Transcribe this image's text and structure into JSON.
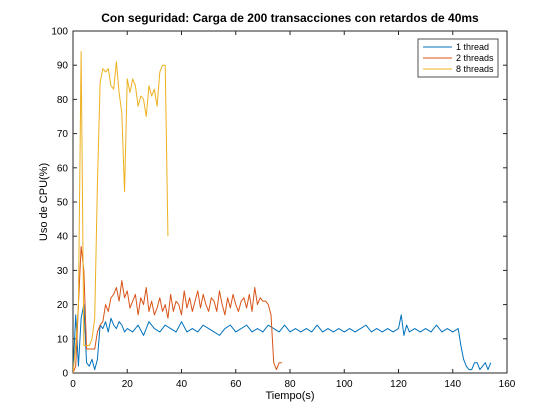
{
  "chart_data": {
    "type": "line",
    "title": "Con seguridad: Carga de 200 transacciones con retardos de 40ms",
    "xlabel": "Tiempo(s)",
    "ylabel": "Uso de CPU(%)",
    "xlim": [
      0,
      160
    ],
    "ylim": [
      0,
      100
    ],
    "xticks": [
      0,
      20,
      40,
      60,
      80,
      100,
      120,
      140,
      160
    ],
    "yticks": [
      0,
      10,
      20,
      30,
      40,
      50,
      60,
      70,
      80,
      90,
      100
    ],
    "grid": false,
    "legend_position": "top-right",
    "series": [
      {
        "name": "1 thread",
        "color": "#0072BD",
        "x": [
          0,
          1,
          2,
          3,
          4,
          5,
          6,
          7,
          8,
          9,
          10,
          11,
          12,
          13,
          14,
          15,
          16,
          17,
          18,
          19,
          20,
          22,
          24,
          26,
          28,
          30,
          32,
          34,
          36,
          38,
          40,
          42,
          44,
          46,
          48,
          50,
          52,
          54,
          56,
          58,
          60,
          62,
          64,
          66,
          68,
          70,
          72,
          74,
          76,
          78,
          80,
          82,
          84,
          86,
          88,
          90,
          92,
          94,
          96,
          98,
          100,
          102,
          104,
          106,
          108,
          110,
          112,
          114,
          116,
          118,
          120,
          121,
          122,
          123,
          124,
          126,
          128,
          130,
          132,
          134,
          136,
          138,
          140,
          142,
          143,
          144,
          145,
          146,
          147,
          148,
          149,
          150,
          151,
          152,
          153,
          154
        ],
        "y": [
          0,
          17,
          2,
          16,
          20,
          3,
          2,
          4,
          1,
          4,
          14,
          13,
          15,
          12,
          16,
          14,
          13,
          15,
          14,
          12,
          13,
          12,
          14,
          11,
          15,
          13,
          12,
          14,
          13,
          12,
          15,
          12,
          13,
          12,
          14,
          13,
          12,
          11,
          13,
          14,
          12,
          13,
          14,
          12,
          13,
          12,
          14,
          13,
          12,
          14,
          12,
          13,
          12,
          13,
          12,
          14,
          12,
          13,
          12,
          13,
          12,
          13,
          12,
          13,
          14,
          12,
          13,
          12,
          13,
          12,
          13,
          17,
          11,
          14,
          12,
          13,
          12,
          13,
          12,
          14,
          12,
          13,
          12,
          13,
          8,
          4,
          2,
          1,
          1,
          3,
          3,
          1,
          2,
          3,
          1,
          3
        ]
      },
      {
        "name": "2 threads",
        "color": "#D95319",
        "x": [
          0,
          1,
          2,
          3,
          4,
          5,
          6,
          7,
          8,
          9,
          10,
          11,
          12,
          13,
          14,
          15,
          16,
          17,
          18,
          19,
          20,
          21,
          22,
          23,
          24,
          25,
          26,
          27,
          28,
          29,
          30,
          31,
          32,
          33,
          34,
          35,
          36,
          37,
          38,
          39,
          40,
          41,
          42,
          43,
          44,
          45,
          46,
          47,
          48,
          49,
          50,
          51,
          52,
          53,
          54,
          55,
          56,
          57,
          58,
          59,
          60,
          61,
          62,
          63,
          64,
          65,
          66,
          67,
          68,
          69,
          70,
          71,
          72,
          73,
          74,
          75,
          76,
          77
        ],
        "y": [
          0,
          2,
          20,
          37,
          30,
          7,
          7,
          7,
          7,
          12,
          14,
          15,
          20,
          18,
          22,
          23,
          25,
          21,
          27,
          22,
          24,
          19,
          21,
          23,
          17,
          22,
          20,
          25,
          18,
          21,
          17,
          19,
          22,
          18,
          20,
          16,
          23,
          18,
          21,
          20,
          17,
          24,
          19,
          22,
          18,
          21,
          24,
          19,
          23,
          20,
          18,
          22,
          21,
          18,
          24,
          20,
          17,
          22,
          19,
          23,
          20,
          18,
          21,
          22,
          19,
          23,
          18,
          25,
          20,
          22,
          21,
          21,
          20,
          17,
          3,
          1,
          3,
          3
        ]
      },
      {
        "name": "8 threads",
        "color": "#EDB120",
        "x": [
          0,
          1,
          2,
          3,
          4,
          5,
          6,
          7,
          8,
          9,
          10,
          11,
          12,
          13,
          14,
          15,
          16,
          17,
          18,
          19,
          20,
          21,
          22,
          23,
          24,
          25,
          26,
          27,
          28,
          29,
          30,
          31,
          32,
          33,
          34,
          35
        ],
        "y": [
          0,
          8,
          20,
          94,
          8,
          8,
          8,
          10,
          16,
          55,
          85,
          89,
          88,
          89,
          84,
          83,
          91,
          82,
          76,
          53,
          86,
          82,
          86,
          84,
          78,
          81,
          80,
          75,
          84,
          81,
          83,
          78,
          88,
          90,
          90,
          40
        ]
      }
    ]
  }
}
